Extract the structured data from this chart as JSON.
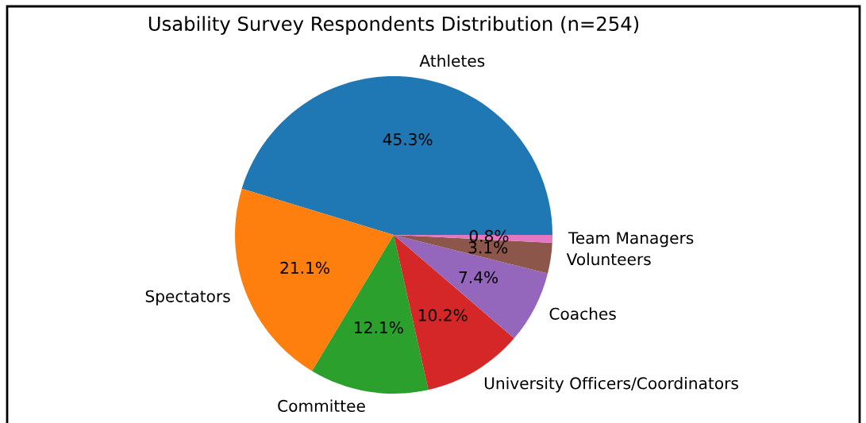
{
  "chart_data": {
    "type": "pie",
    "title": "Usability Survey Respondents Distribution (n=254)",
    "categories": [
      "Athletes",
      "Spectators",
      "Committee",
      "University Officers/Coordinators",
      "Coaches",
      "Volunteers",
      "Team Managers"
    ],
    "values": [
      45.3,
      21.1,
      12.1,
      10.2,
      7.4,
      3.1,
      0.8
    ],
    "value_labels": [
      "45.3%",
      "21.1%",
      "12.1%",
      "10.2%",
      "7.4%",
      "3.1%",
      "0.8%"
    ],
    "colors": [
      "#1f77b4",
      "#ff7f0e",
      "#2ca02c",
      "#d62728",
      "#9467bd",
      "#8c564b",
      "#e377c2"
    ]
  }
}
